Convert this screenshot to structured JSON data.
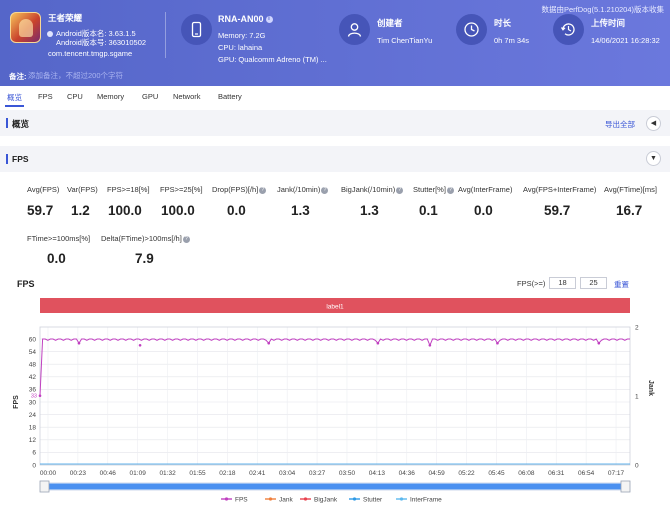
{
  "header": {
    "perfdog_note": "数据由PerfDog(5.1.210204)版本收集",
    "app_name": "王者荣耀",
    "android_version": "Android版本名: 3.63.1.5",
    "android_build": "Android版本号: 363010502",
    "package": "com.tencent.tmgp.sgame",
    "device_name": "RNA-AN00",
    "device_memory": "Memory: 7.2G",
    "device_cpu": "CPU: lahaina",
    "device_gpu": "GPU: Qualcomm Adreno (TM) ...",
    "creator_label": "创建者",
    "creator_value": "Tim ChenTianYu",
    "duration_label": "时长",
    "duration_value": "0h 7m 34s",
    "upload_label": "上传时间",
    "upload_value": "14/06/2021 16:28:32",
    "note_label": "备注:",
    "note_placeholder": "添加备注，不超过200个字符",
    "icons": [
      "app-icon",
      "android-icon",
      "phone-icon",
      "info-icon",
      "user-icon",
      "clock-icon",
      "history-icon"
    ]
  },
  "tabs": [
    {
      "label": "概览",
      "active": true
    },
    {
      "label": "FPS"
    },
    {
      "label": "CPU"
    },
    {
      "label": "Memory"
    },
    {
      "label": "GPU"
    },
    {
      "label": "Network"
    },
    {
      "label": "Battery"
    }
  ],
  "overview": {
    "title": "概览",
    "export_label": "导出全部",
    "collapse_icon": "chevron-left-icon"
  },
  "fps_section": {
    "title": "FPS",
    "expand_icon": "chevron-down-icon",
    "metrics": [
      {
        "label": "Avg(FPS)",
        "value": "59.7"
      },
      {
        "label": "Var(FPS)",
        "value": "1.2"
      },
      {
        "label": "FPS>=18[%]",
        "value": "100.0"
      },
      {
        "label": "FPS>=25[%]",
        "value": "100.0"
      },
      {
        "label": "Drop(FPS)[/h]",
        "value": "0.0",
        "help": "?"
      },
      {
        "label": "Jank(/10min)",
        "value": "1.3",
        "help": "?"
      },
      {
        "label": "BigJank(/10min)",
        "value": "1.3",
        "help": "?"
      },
      {
        "label": "Stutter[%]",
        "value": "0.1",
        "help": "?"
      },
      {
        "label": "Avg(InterFrame)",
        "value": "0.0"
      },
      {
        "label": "Avg(FPS+InterFrame)",
        "value": "59.7"
      },
      {
        "label": "Avg(FTime)[ms]",
        "value": "16.7"
      },
      {
        "label": "FTime>=100ms[%]",
        "value": "0.0"
      },
      {
        "label": "Delta(FTime)>100ms[/h]",
        "value": "7.9",
        "help": "?"
      }
    ]
  },
  "chart_controls": {
    "fps_threshold_label": "FPS(>=)",
    "threshold_1": "18",
    "threshold_2": "25",
    "reset_label": "重置"
  },
  "chart_data": {
    "type": "line",
    "title": "FPS",
    "band_label": "label1",
    "ylabel": "FPS",
    "ylabel_right": "Jank",
    "ylim": [
      0,
      60
    ],
    "y_ticks": [
      "0",
      "6",
      "12",
      "18",
      "24",
      "30",
      "36",
      "42",
      "48",
      "54",
      "60"
    ],
    "ylim_right": [
      0,
      2
    ],
    "y_ticks_right": [
      "0",
      "1",
      "2"
    ],
    "x_ticks": [
      "00:00",
      "00:23",
      "00:46",
      "01:09",
      "01:32",
      "01:55",
      "02:18",
      "02:41",
      "03:04",
      "03:27",
      "03:50",
      "04:13",
      "04:36",
      "04:59",
      "05:22",
      "05:45",
      "06:08",
      "06:31",
      "06:54",
      "07:17"
    ],
    "xlim_seconds": [
      0,
      454
    ],
    "grid": true,
    "legend_position": "bottom",
    "series": [
      {
        "name": "FPS",
        "color": "#c040c0",
        "base": 60,
        "dips": [
          [
            0,
            33
          ],
          [
            30,
            58
          ],
          [
            77,
            57
          ],
          [
            176,
            58
          ],
          [
            260,
            58
          ],
          [
            300,
            57
          ],
          [
            352,
            58
          ],
          [
            430,
            58
          ]
        ]
      },
      {
        "name": "Jank",
        "color": "#f07f3c"
      },
      {
        "name": "BigJank",
        "color": "#e8424e"
      },
      {
        "name": "Stutter",
        "color": "#2e9ae6"
      },
      {
        "name": "InterFrame",
        "color": "#5cb8ee"
      }
    ],
    "first_point_label": "33"
  }
}
